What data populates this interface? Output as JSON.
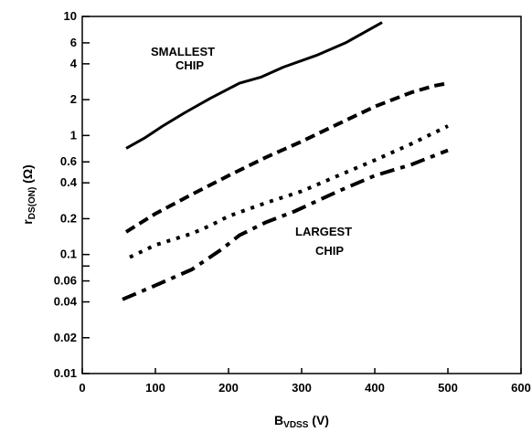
{
  "chart_data": {
    "type": "line",
    "x_scale": "linear",
    "y_scale": "log",
    "xlim": [
      0,
      600
    ],
    "ylim": [
      0.01,
      10
    ],
    "x_ticks": [
      "0",
      "100",
      "200",
      "300",
      "400",
      "500",
      "600"
    ],
    "y_ticks": [
      {
        "value": 0.01,
        "label": "0.01"
      },
      {
        "value": 0.02,
        "label": "0.02"
      },
      {
        "value": 0.04,
        "label": "0.04"
      },
      {
        "value": 0.06,
        "label": "0.06"
      },
      {
        "value": 0.1,
        "label": "0.1"
      },
      {
        "value": 0.2,
        "label": "0.2"
      },
      {
        "value": 0.4,
        "label": "0.4"
      },
      {
        "value": 0.6,
        "label": "0.6"
      },
      {
        "value": 1,
        "label": "1"
      },
      {
        "value": 2,
        "label": "2"
      },
      {
        "value": 4,
        "label": "4"
      },
      {
        "value": 6,
        "label": "6"
      },
      {
        "value": 10,
        "label": "10"
      }
    ],
    "y_minor_ticks": [
      0.08
    ],
    "xlabel": {
      "main": "B",
      "sub": "VDSS",
      "rest": " (V)"
    },
    "ylabel": {
      "main": "r",
      "sub": "DS(ON)",
      "rest": " (Ω)"
    },
    "annotations": {
      "smallest_line1": "SMALLEST",
      "smallest_line2": "CHIP",
      "largest_line1": "LARGEST",
      "largest_line2": "CHIP"
    },
    "series": [
      {
        "style": "solid",
        "points": [
          [
            60,
            0.78
          ],
          [
            85,
            0.95
          ],
          [
            110,
            1.2
          ],
          [
            140,
            1.55
          ],
          [
            175,
            2.05
          ],
          [
            215,
            2.75
          ],
          [
            245,
            3.1
          ],
          [
            275,
            3.75
          ],
          [
            320,
            4.7
          ],
          [
            360,
            6.0
          ],
          [
            410,
            8.9
          ]
        ]
      },
      {
        "style": "dashed",
        "points": [
          [
            60,
            0.155
          ],
          [
            100,
            0.22
          ],
          [
            150,
            0.32
          ],
          [
            200,
            0.46
          ],
          [
            250,
            0.65
          ],
          [
            300,
            0.89
          ],
          [
            350,
            1.25
          ],
          [
            400,
            1.75
          ],
          [
            450,
            2.3
          ],
          [
            480,
            2.6
          ],
          [
            500,
            2.75
          ]
        ]
      },
      {
        "style": "dotted",
        "points": [
          [
            65,
            0.095
          ],
          [
            100,
            0.12
          ],
          [
            150,
            0.15
          ],
          [
            175,
            0.175
          ],
          [
            200,
            0.21
          ],
          [
            250,
            0.27
          ],
          [
            300,
            0.34
          ],
          [
            350,
            0.46
          ],
          [
            400,
            0.62
          ],
          [
            450,
            0.85
          ],
          [
            500,
            1.2
          ]
        ]
      },
      {
        "style": "dashdot",
        "points": [
          [
            55,
            0.042
          ],
          [
            100,
            0.055
          ],
          [
            150,
            0.075
          ],
          [
            190,
            0.11
          ],
          [
            215,
            0.145
          ],
          [
            250,
            0.185
          ],
          [
            290,
            0.23
          ],
          [
            350,
            0.34
          ],
          [
            400,
            0.46
          ],
          [
            450,
            0.57
          ],
          [
            500,
            0.75
          ]
        ]
      }
    ]
  }
}
